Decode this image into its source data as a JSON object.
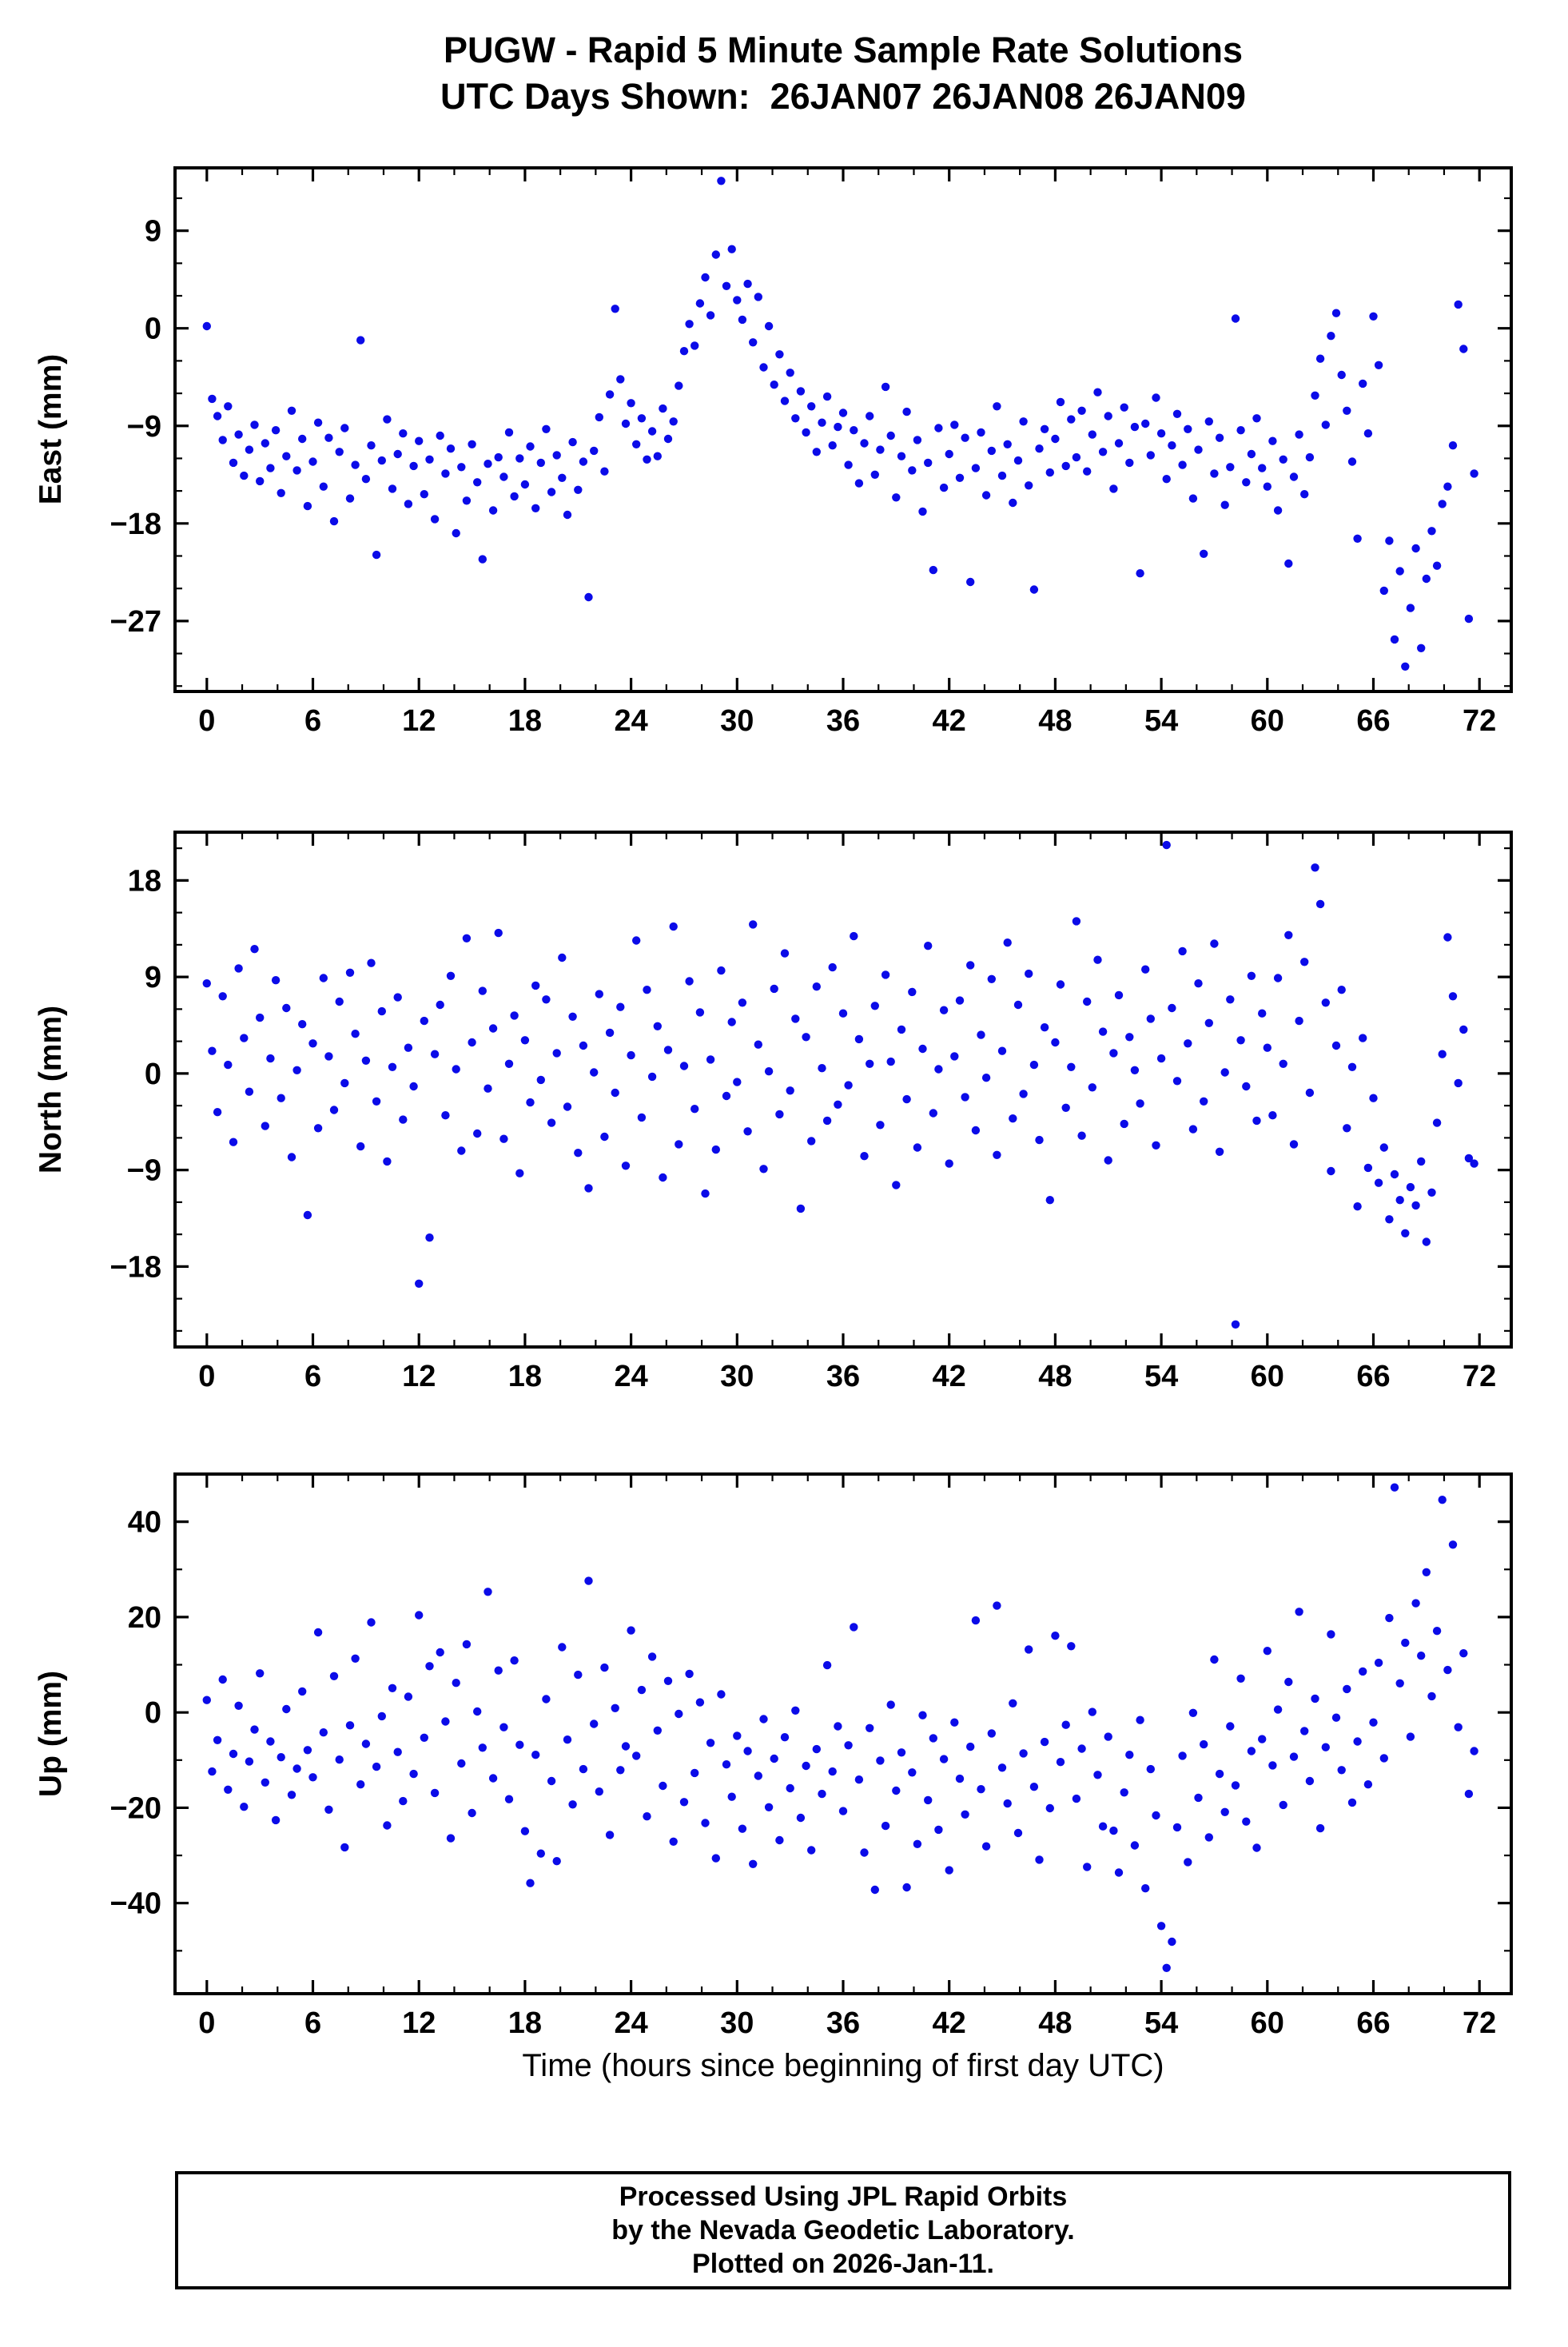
{
  "header": {
    "line1": "PUGW - Rapid 5 Minute Sample Rate Solutions",
    "line2": "UTC Days Shown:  26JAN07 26JAN08 26JAN09"
  },
  "xlabel": "Time (hours since beginning of first day UTC)",
  "footer": {
    "lines": [
      "Processed Using JPL Rapid Orbits",
      "by the Nevada Geodetic Laboratory.",
      "Plotted on 2026-Jan-11."
    ]
  },
  "point_color": "#0b0be8",
  "chart_data": [
    {
      "type": "scatter",
      "name": "east",
      "ylabel": "East (mm)",
      "xlim": [
        -1.8,
        73.8
      ],
      "ylim": [
        -33.5,
        14.8
      ],
      "xticks": [
        0,
        6,
        12,
        18,
        24,
        30,
        36,
        42,
        48,
        54,
        60,
        66,
        72
      ],
      "xminor": 2,
      "yticks": [
        9,
        0,
        -9,
        -18,
        -27
      ],
      "yminor": 3,
      "x_start": 0,
      "x_step": 0.3,
      "y": [
        0.2,
        -6.5,
        -8.1,
        -10.3,
        -7.2,
        -12.4,
        -9.8,
        -13.6,
        -11.2,
        -8.9,
        -14.1,
        -10.6,
        -12.9,
        -9.4,
        -15.2,
        -11.8,
        -7.6,
        -13.1,
        -10.2,
        -16.4,
        -12.3,
        -8.7,
        -14.6,
        -10.1,
        -17.8,
        -11.4,
        -9.2,
        -15.7,
        -12.6,
        -1.1,
        -13.9,
        -10.8,
        -20.9,
        -12.2,
        -8.4,
        -14.8,
        -11.6,
        -9.7,
        -16.2,
        -12.7,
        -10.4,
        -15.3,
        -12.1,
        -17.6,
        -9.9,
        -13.4,
        -11.1,
        -18.9,
        -12.8,
        -15.9,
        -10.7,
        -14.2,
        -21.3,
        -12.5,
        -16.8,
        -11.9,
        -13.7,
        -9.6,
        -15.5,
        -12.0,
        -14.4,
        -10.9,
        -16.6,
        -12.4,
        -9.3,
        -15.1,
        -11.7,
        -13.8,
        -17.2,
        -10.5,
        -14.9,
        -12.3,
        -24.8,
        -11.3,
        -8.2,
        -13.2,
        -6.1,
        1.8,
        -4.7,
        -8.8,
        -6.9,
        -10.7,
        -8.3,
        -12.1,
        -9.5,
        -11.8,
        -7.4,
        -10.2,
        -8.6,
        -5.3,
        -2.1,
        0.4,
        -1.6,
        2.3,
        4.7,
        1.2,
        6.8,
        13.6,
        3.9,
        7.3,
        2.6,
        0.8,
        4.1,
        -1.3,
        2.9,
        -3.6,
        0.2,
        -5.2,
        -2.4,
        -6.7,
        -4.1,
        -8.3,
        -5.8,
        -9.6,
        -7.2,
        -11.4,
        -8.7,
        -6.3,
        -10.8,
        -9.1,
        -7.8,
        -12.6,
        -9.4,
        -14.3,
        -10.6,
        -8.1,
        -13.5,
        -11.2,
        -5.4,
        -9.9,
        -15.6,
        -11.8,
        -7.7,
        -13.1,
        -10.3,
        -16.9,
        -12.4,
        -22.3,
        -9.2,
        -14.7,
        -11.6,
        -8.9,
        -13.8,
        -10.1,
        -23.4,
        -12.9,
        -9.6,
        -15.4,
        -11.3,
        -7.2,
        -13.6,
        -10.7,
        -16.1,
        -12.2,
        -8.6,
        -14.5,
        -24.1,
        -11.1,
        -9.3,
        -13.3,
        -10.2,
        -6.8,
        -12.7,
        -8.4,
        -11.9,
        -7.6,
        -13.2,
        -9.8,
        -5.9,
        -11.4,
        -8.1,
        -14.8,
        -10.6,
        -7.3,
        -12.4,
        -9.1,
        -22.6,
        -8.8,
        -11.7,
        -6.4,
        -9.7,
        -13.9,
        -10.8,
        -7.9,
        -12.6,
        -9.3,
        -15.7,
        -11.2,
        -20.8,
        -8.6,
        -13.4,
        -10.1,
        -16.3,
        -12.8,
        0.9,
        -9.4,
        -14.2,
        -11.6,
        -8.3,
        -12.9,
        -14.6,
        -10.4,
        -16.8,
        -12.1,
        -21.7,
        -13.7,
        -9.8,
        -15.3,
        -11.9,
        -6.2,
        -2.8,
        -8.9,
        -0.7,
        1.4,
        -4.3,
        -7.6,
        -12.3,
        -19.4,
        -5.1,
        -9.7,
        1.1,
        -3.4,
        -24.2,
        -19.6,
        -28.7,
        -22.4,
        -31.2,
        -25.8,
        -20.3,
        -29.5,
        -23.1,
        -18.7,
        -21.9,
        -16.2,
        -14.6,
        -10.8,
        2.2,
        -1.9,
        -26.8,
        -13.4
      ]
    },
    {
      "type": "scatter",
      "name": "north",
      "ylabel": "North (mm)",
      "xlim": [
        -1.8,
        73.8
      ],
      "ylim": [
        -25.5,
        22.5
      ],
      "xticks": [
        0,
        6,
        12,
        18,
        24,
        30,
        36,
        42,
        48,
        54,
        60,
        66,
        72
      ],
      "xminor": 2,
      "yticks": [
        18,
        9,
        0,
        -9,
        -18
      ],
      "yminor": 3,
      "x_start": 0,
      "x_step": 0.3,
      "y": [
        8.4,
        2.1,
        -3.6,
        7.2,
        0.8,
        -6.4,
        9.8,
        3.3,
        -1.7,
        11.6,
        5.2,
        -4.9,
        1.4,
        8.7,
        -2.3,
        6.1,
        -7.8,
        0.3,
        4.6,
        -13.2,
        2.8,
        -5.1,
        8.9,
        1.6,
        -3.4,
        6.7,
        -0.9,
        9.4,
        3.7,
        -6.8,
        1.2,
        10.3,
        -2.6,
        5.8,
        -8.2,
        0.6,
        7.1,
        -4.3,
        2.4,
        -1.2,
        -19.6,
        4.9,
        -15.3,
        1.8,
        6.4,
        -3.9,
        9.1,
        0.4,
        -7.2,
        12.6,
        2.9,
        -5.6,
        7.7,
        -1.4,
        4.2,
        13.1,
        -6.1,
        0.9,
        5.4,
        -9.3,
        3.1,
        -2.7,
        8.2,
        -0.6,
        6.9,
        -4.6,
        1.9,
        10.8,
        -3.1,
        5.3,
        -7.4,
        2.6,
        -10.7,
        0.1,
        7.4,
        -5.9,
        3.8,
        -1.8,
        6.2,
        -8.6,
        1.7,
        12.4,
        -4.1,
        7.8,
        -0.3,
        4.4,
        -9.7,
        2.2,
        13.7,
        -6.6,
        0.7,
        8.6,
        -3.3,
        5.7,
        -11.2,
        1.3,
        -7.1,
        9.6,
        -2.1,
        4.8,
        -0.8,
        6.6,
        -5.4,
        13.9,
        2.7,
        -8.9,
        0.2,
        7.9,
        -3.8,
        11.2,
        -1.6,
        5.1,
        -12.6,
        3.4,
        -6.3,
        8.1,
        0.5,
        -4.4,
        9.9,
        -2.9,
        5.6,
        -1.1,
        12.8,
        3.2,
        -7.7,
        0.9,
        6.3,
        -4.8,
        9.2,
        1.1,
        -10.4,
        4.1,
        -2.4,
        7.6,
        -6.9,
        2.3,
        11.9,
        -3.7,
        0.4,
        5.9,
        -8.4,
        1.6,
        6.8,
        -2.2,
        10.1,
        -5.3,
        3.6,
        -0.4,
        8.8,
        -7.6,
        2.1,
        12.2,
        -4.2,
        6.4,
        -1.9,
        9.3,
        0.8,
        -6.2,
        4.3,
        -11.8,
        2.9,
        8.3,
        -3.2,
        0.6,
        14.2,
        -5.8,
        6.7,
        -1.3,
        10.6,
        3.9,
        -8.1,
        1.9,
        7.3,
        -4.7,
        3.4,
        0.3,
        -2.8,
        9.7,
        5.1,
        -6.7,
        1.4,
        21.3,
        6.1,
        -0.7,
        11.4,
        2.8,
        -5.2,
        8.4,
        -2.6,
        4.7,
        12.1,
        -7.3,
        0.1,
        6.9,
        -23.4,
        3.1,
        -1.2,
        9.1,
        -4.4,
        5.6,
        2.4,
        -3.9,
        8.9,
        0.9,
        12.9,
        -6.6,
        4.9,
        10.4,
        -1.8,
        19.2,
        15.8,
        6.6,
        -9.1,
        2.6,
        7.8,
        -5.1,
        0.6,
        -12.4,
        3.3,
        -8.8,
        -2.3,
        -10.2,
        -6.9,
        -13.6,
        -9.4,
        -11.8,
        -14.9,
        -10.6,
        -12.3,
        -8.2,
        -15.7,
        -11.1,
        -4.6,
        1.8,
        12.7,
        7.2,
        -0.9,
        4.1,
        -7.9,
        -8.4
      ]
    },
    {
      "type": "scatter",
      "name": "up",
      "ylabel": "Up (mm)",
      "xlim": [
        -1.8,
        73.8
      ],
      "ylim": [
        -59,
        50
      ],
      "xticks": [
        0,
        6,
        12,
        18,
        24,
        30,
        36,
        42,
        48,
        54,
        60,
        66,
        72
      ],
      "xminor": 2,
      "yticks": [
        40,
        20,
        0,
        -20,
        -40
      ],
      "yminor": 10,
      "x_start": 0,
      "x_step": 0.3,
      "y": [
        2.6,
        -12.4,
        -5.8,
        6.9,
        -16.2,
        -8.7,
        1.4,
        -19.8,
        -10.3,
        -3.6,
        8.2,
        -14.7,
        -6.1,
        -22.6,
        -9.4,
        0.7,
        -17.3,
        -11.8,
        4.4,
        -7.9,
        -13.6,
        16.8,
        -4.2,
        -20.4,
        7.6,
        -9.9,
        -28.3,
        -2.7,
        11.3,
        -15.1,
        -6.6,
        18.9,
        -11.4,
        -0.8,
        -23.7,
        5.1,
        -8.3,
        -18.6,
        3.3,
        -12.9,
        20.4,
        -5.3,
        9.7,
        -16.9,
        12.6,
        -1.9,
        -26.4,
        6.2,
        -10.7,
        14.3,
        -21.1,
        0.2,
        -7.4,
        25.3,
        -13.8,
        8.8,
        -3.1,
        -18.2,
        10.9,
        -6.8,
        -24.9,
        -35.8,
        -8.9,
        -29.6,
        2.8,
        -14.4,
        -31.2,
        13.7,
        -5.7,
        -19.3,
        7.9,
        -11.9,
        27.6,
        -2.4,
        -16.6,
        9.4,
        -25.7,
        0.9,
        -12.1,
        -7.1,
        17.2,
        -9.1,
        4.7,
        -21.8,
        11.7,
        -3.8,
        -15.4,
        6.6,
        -27.1,
        -0.3,
        -18.8,
        8.1,
        -12.7,
        2.1,
        -23.2,
        -6.4,
        -30.6,
        3.8,
        -10.9,
        -17.7,
        -4.9,
        -24.4,
        -8.1,
        -31.8,
        -13.3,
        -1.4,
        -19.9,
        -9.7,
        -26.8,
        -5.2,
        -15.9,
        0.4,
        -22.1,
        -11.2,
        -28.9,
        -7.7,
        -17.1,
        9.9,
        -12.4,
        -2.9,
        -20.7,
        -6.9,
        17.9,
        -14.1,
        -29.4,
        -3.3,
        -37.2,
        -10.1,
        -23.8,
        1.6,
        -16.4,
        -8.4,
        -36.7,
        -12.6,
        -27.6,
        -0.6,
        -18.4,
        -5.4,
        -24.6,
        -9.8,
        -33.1,
        -2.1,
        -13.9,
        -21.4,
        -7.2,
        19.3,
        -16.1,
        -28.1,
        -4.4,
        22.4,
        -11.6,
        -19.1,
        1.9,
        -25.3,
        -8.6,
        13.2,
        -15.6,
        -30.9,
        -6.2,
        -20.1,
        16.1,
        -10.4,
        -2.6,
        13.9,
        -18.1,
        -7.6,
        -32.4,
        0.1,
        -13.1,
        -23.9,
        -5.1,
        -24.8,
        -33.6,
        -16.8,
        -8.9,
        -27.9,
        -1.6,
        -36.9,
        -11.9,
        -21.6,
        -44.8,
        -53.6,
        -48.1,
        -24.1,
        -9.1,
        -31.4,
        -0.1,
        -17.9,
        -6.7,
        -26.2,
        11.1,
        -12.9,
        -20.9,
        -2.9,
        -15.3,
        7.1,
        -22.9,
        -8.1,
        -28.4,
        -5.6,
        12.9,
        -11.1,
        0.6,
        -19.4,
        6.4,
        -9.3,
        21.1,
        -3.9,
        -14.4,
        2.9,
        -24.3,
        -7.3,
        16.4,
        -1.1,
        -12.1,
        4.9,
        -18.9,
        -6.1,
        8.6,
        -15.1,
        -2.1,
        10.4,
        -9.6,
        19.8,
        47.2,
        6.1,
        14.6,
        -5.1,
        22.9,
        11.9,
        29.4,
        3.4,
        17.1,
        44.6,
        8.9,
        35.2,
        -3.1,
        12.4,
        -17.1,
        -8.1
      ]
    }
  ]
}
